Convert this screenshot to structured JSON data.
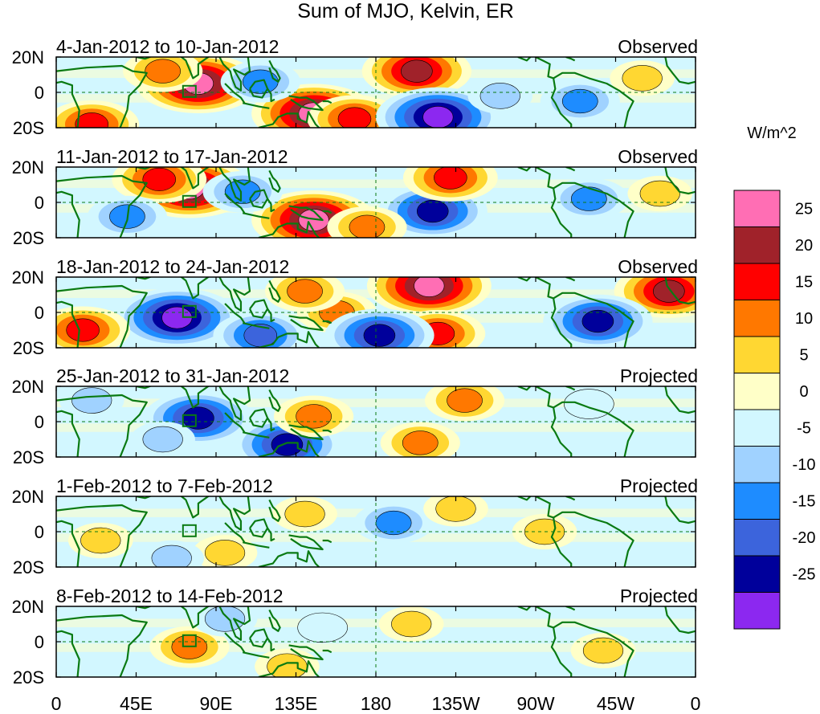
{
  "chart_data": {
    "type": "heatmap",
    "title": "Sum of MJO, Kelvin, ER",
    "variable": "OLR anomaly",
    "units": "W/m^2",
    "x_ticks": [
      "0",
      "45E",
      "90E",
      "135E",
      "180",
      "135W",
      "90W",
      "45W",
      "0"
    ],
    "x_tick_values": [
      0,
      45,
      90,
      135,
      180,
      225,
      270,
      315,
      360
    ],
    "xlim": [
      0,
      360
    ],
    "y_ticks": [
      "20N",
      "0",
      "20S"
    ],
    "y_tick_values": [
      20,
      0,
      -20
    ],
    "ylim": [
      -20,
      20
    ],
    "colorbar": {
      "label": "W/m^2",
      "tick_labels": [
        "25",
        "20",
        "15",
        "10",
        "5",
        "0",
        "-5",
        "-10",
        "-15",
        "-20",
        "-25"
      ],
      "levels": [
        25,
        20,
        15,
        10,
        5,
        0,
        -5,
        -10,
        -15,
        -20,
        -25
      ],
      "colors": [
        "#ff6eb4",
        "#a0222a",
        "#ff0000",
        "#ff7800",
        "#ffd732",
        "#ffffc8",
        "#d2f7ff",
        "#a0d2ff",
        "#1e8cff",
        "#3c64dc",
        "#00009b",
        "#8c28f0"
      ]
    },
    "panels": [
      {
        "date_range": "4-Jan-2012 to 10-Jan-2012",
        "status": "Observed",
        "features": [
          {
            "lon": 80,
            "lat": 5,
            "value": 27
          },
          {
            "lon": 60,
            "lat": 12,
            "value": 14
          },
          {
            "lon": 145,
            "lat": -12,
            "value": 27
          },
          {
            "lon": 168,
            "lat": -15,
            "value": 16
          },
          {
            "lon": 203,
            "lat": 12,
            "value": 22
          },
          {
            "lon": 215,
            "lat": -14,
            "value": -27
          },
          {
            "lon": 250,
            "lat": -2,
            "value": -8
          },
          {
            "lon": 295,
            "lat": -5,
            "value": -15
          },
          {
            "lon": 330,
            "lat": 8,
            "value": 7
          },
          {
            "lon": 20,
            "lat": -18,
            "value": 20
          },
          {
            "lon": 115,
            "lat": 6,
            "value": -11
          }
        ]
      },
      {
        "date_range": "11-Jan-2012 to 17-Jan-2012",
        "status": "Observed",
        "features": [
          {
            "lon": 75,
            "lat": 8,
            "value": 27
          },
          {
            "lon": 58,
            "lat": 13,
            "value": 16
          },
          {
            "lon": 145,
            "lat": -10,
            "value": 26
          },
          {
            "lon": 212,
            "lat": -5,
            "value": -25
          },
          {
            "lon": 222,
            "lat": 14,
            "value": 17
          },
          {
            "lon": 105,
            "lat": 6,
            "value": -15
          },
          {
            "lon": 300,
            "lat": 2,
            "value": -15
          },
          {
            "lon": 40,
            "lat": -8,
            "value": -12
          },
          {
            "lon": 175,
            "lat": -14,
            "value": 13
          },
          {
            "lon": 340,
            "lat": 5,
            "value": 9
          }
        ]
      },
      {
        "date_range": "18-Jan-2012 to 24-Jan-2012",
        "status": "Observed",
        "features": [
          {
            "lon": 68,
            "lat": -3,
            "value": -27
          },
          {
            "lon": 210,
            "lat": 15,
            "value": 26
          },
          {
            "lon": 345,
            "lat": 12,
            "value": 21
          },
          {
            "lon": 158,
            "lat": 0,
            "value": 13
          },
          {
            "lon": 215,
            "lat": -12,
            "value": 20
          },
          {
            "lon": 182,
            "lat": -13,
            "value": -23
          },
          {
            "lon": 115,
            "lat": -13,
            "value": -20
          },
          {
            "lon": 305,
            "lat": -5,
            "value": -22
          },
          {
            "lon": 15,
            "lat": -10,
            "value": 17
          },
          {
            "lon": 140,
            "lat": 12,
            "value": 11
          }
        ]
      },
      {
        "date_range": "25-Jan-2012 to 31-Jan-2012",
        "status": "Projected",
        "features": [
          {
            "lon": 80,
            "lat": 2,
            "value": -23
          },
          {
            "lon": 130,
            "lat": -13,
            "value": -21
          },
          {
            "lon": 205,
            "lat": -12,
            "value": 15
          },
          {
            "lon": 230,
            "lat": 12,
            "value": 11
          },
          {
            "lon": 145,
            "lat": 3,
            "value": 11
          },
          {
            "lon": 60,
            "lat": -10,
            "value": -8
          },
          {
            "lon": 300,
            "lat": 10,
            "value": -5
          },
          {
            "lon": 20,
            "lat": 12,
            "value": -6
          }
        ]
      },
      {
        "date_range": "1-Feb-2012 to 7-Feb-2012",
        "status": "Projected",
        "features": [
          {
            "lon": 190,
            "lat": 5,
            "value": -13
          },
          {
            "lon": 275,
            "lat": 0,
            "value": 9
          },
          {
            "lon": 225,
            "lat": 13,
            "value": 7
          },
          {
            "lon": 95,
            "lat": -12,
            "value": 10
          },
          {
            "lon": 140,
            "lat": 10,
            "value": 7
          },
          {
            "lon": 65,
            "lat": -15,
            "value": -10
          },
          {
            "lon": 25,
            "lat": -5,
            "value": 6
          }
        ]
      },
      {
        "date_range": "8-Feb-2012 to 14-Feb-2012",
        "status": "Projected",
        "features": [
          {
            "lon": 75,
            "lat": -3,
            "value": 13
          },
          {
            "lon": 200,
            "lat": 10,
            "value": 8
          },
          {
            "lon": 308,
            "lat": -5,
            "value": 7
          },
          {
            "lon": 95,
            "lat": 13,
            "value": -7
          },
          {
            "lon": 130,
            "lat": -14,
            "value": 6
          },
          {
            "lon": 150,
            "lat": 8,
            "value": -5
          }
        ]
      }
    ]
  }
}
